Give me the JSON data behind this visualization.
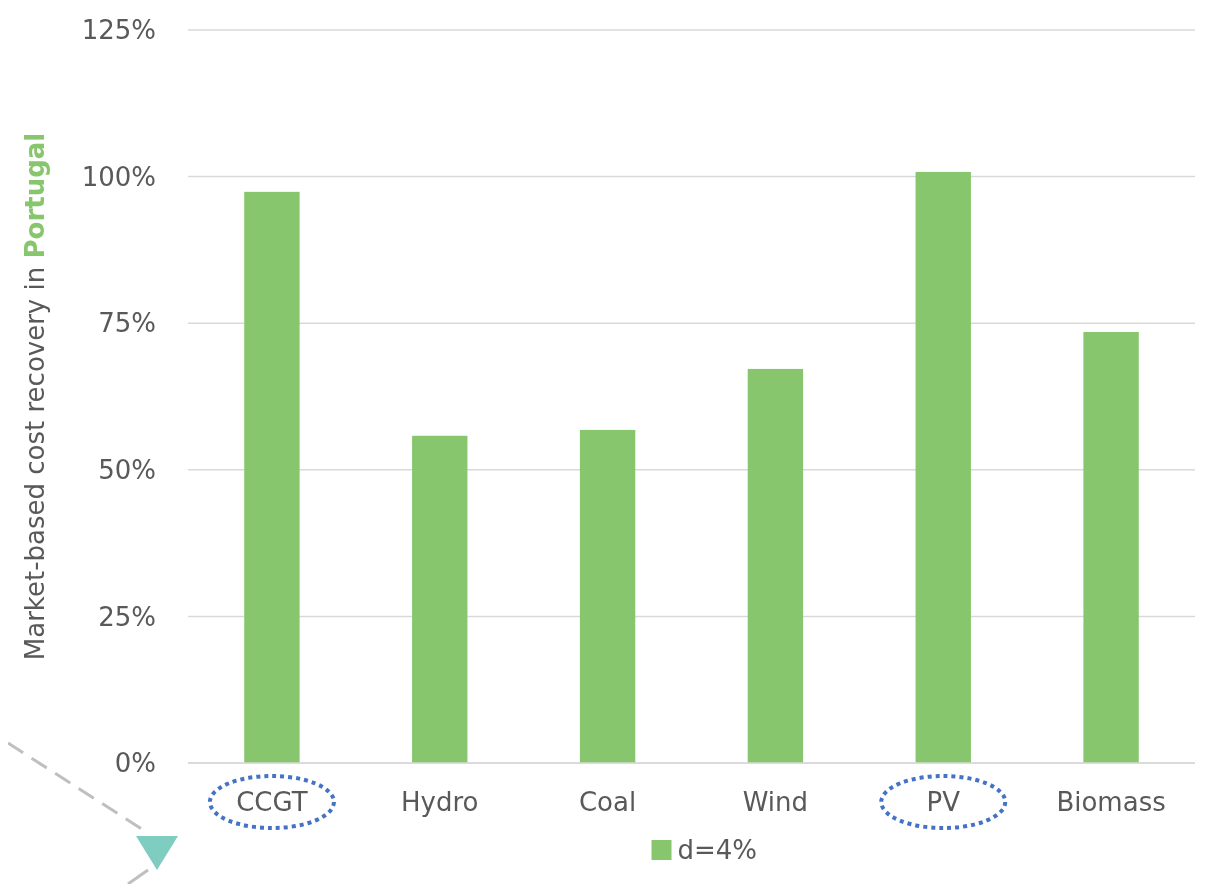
{
  "chart_data": {
    "type": "bar",
    "ylabel": "Market-based cost recovery in Portugal",
    "categories": [
      "CCGT",
      "Hydro",
      "Coal",
      "Wind",
      "PV",
      "Biomass"
    ],
    "series": [
      {
        "name": "d=4%",
        "color": "#88c66d",
        "values": [
          97.4,
          55.8,
          56.8,
          67.2,
          100.8,
          73.5
        ]
      }
    ],
    "ylim": [
      0,
      125
    ],
    "yticks": [
      {
        "value": 0,
        "label": "0%"
      },
      {
        "value": 25,
        "label": "25%"
      },
      {
        "value": 50,
        "label": "50%"
      },
      {
        "value": 75,
        "label": "75%"
      },
      {
        "value": 100,
        "label": "100%"
      },
      {
        "value": 125,
        "label": "125%"
      }
    ],
    "grid": true,
    "legend": "bottom"
  }
}
